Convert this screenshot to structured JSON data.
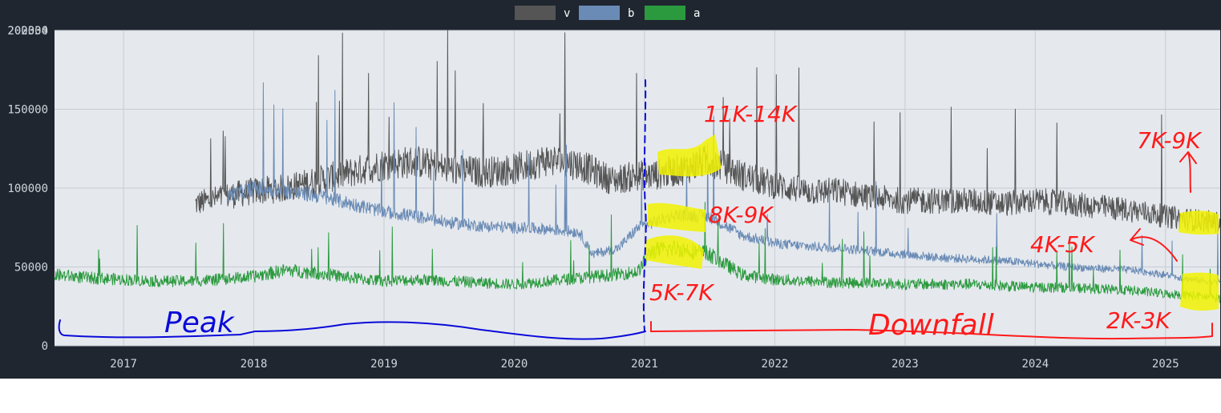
{
  "theme": {
    "frame_bg": "#1f2630",
    "plot_bg": "#e5e9ee",
    "grid": "#c7ccd3",
    "tick_text": "#d0d4da",
    "legend_text": "#ffffff",
    "annotation_red": "#ff1a1a",
    "annotation_blue": "#0a0ad8",
    "highlight": "#f2f200"
  },
  "chart_data": {
    "type": "line",
    "title": "",
    "xlabel": "",
    "ylabel": "",
    "x_range": [
      2016.47,
      2025.42
    ],
    "ylim": [
      0,
      200000
    ],
    "top_tick_label": "202334",
    "y_ticks": [
      {
        "value": 0,
        "label": "0"
      },
      {
        "value": 50000,
        "label": "50000"
      },
      {
        "value": 100000,
        "label": "100000"
      },
      {
        "value": 150000,
        "label": "150000"
      },
      {
        "value": 200000,
        "label": "200000"
      }
    ],
    "x_ticks": [
      {
        "value": 2017,
        "label": "2017"
      },
      {
        "value": 2018,
        "label": "2018"
      },
      {
        "value": 2019,
        "label": "2019"
      },
      {
        "value": 2020,
        "label": "2020"
      },
      {
        "value": 2021,
        "label": "2021"
      },
      {
        "value": 2022,
        "label": "2022"
      },
      {
        "value": 2023,
        "label": "2023"
      },
      {
        "value": 2024,
        "label": "2024"
      },
      {
        "value": 2025,
        "label": "2025"
      }
    ],
    "grid": true,
    "legend_position": "top-center",
    "series": [
      {
        "name": "v",
        "color": "#555555",
        "x": [
          2017.55,
          2017.8,
          2018.0,
          2018.25,
          2018.5,
          2018.75,
          2019.0,
          2019.25,
          2019.5,
          2019.75,
          2020.0,
          2020.25,
          2020.5,
          2020.75,
          2020.95,
          2021.05,
          2021.3,
          2021.5,
          2021.75,
          2022.0,
          2022.25,
          2022.5,
          2022.75,
          2023.0,
          2023.25,
          2023.5,
          2023.75,
          2024.0,
          2024.25,
          2024.5,
          2024.75,
          2025.0,
          2025.2,
          2025.42
        ],
        "values": [
          90000,
          95000,
          98000,
          100000,
          105000,
          110000,
          115000,
          117000,
          112000,
          110000,
          112000,
          118000,
          115000,
          105000,
          108000,
          108000,
          112000,
          118000,
          108000,
          102000,
          98000,
          98000,
          94000,
          92000,
          92000,
          92000,
          90000,
          92000,
          90000,
          88000,
          86000,
          82000,
          80000,
          78000
        ]
      },
      {
        "name": "b",
        "color": "#6a8bb5",
        "x": [
          2017.8,
          2018.0,
          2018.25,
          2018.5,
          2018.75,
          2019.0,
          2019.25,
          2019.5,
          2019.75,
          2020.0,
          2020.25,
          2020.5,
          2020.6,
          2020.8,
          2020.95,
          2021.05,
          2021.25,
          2021.5,
          2021.75,
          2022.0,
          2022.25,
          2022.5,
          2022.75,
          2023.0,
          2023.25,
          2023.5,
          2023.75,
          2024.0,
          2024.25,
          2024.5,
          2024.75,
          2025.0,
          2025.2,
          2025.42
        ],
        "values": [
          95000,
          100000,
          98000,
          95000,
          90000,
          85000,
          82000,
          78000,
          76000,
          75000,
          74000,
          72000,
          58000,
          62000,
          75000,
          78000,
          83000,
          82000,
          70000,
          65000,
          63000,
          62000,
          60000,
          58000,
          56000,
          55000,
          54000,
          52000,
          50000,
          49000,
          48000,
          45000,
          42000,
          40000
        ]
      },
      {
        "name": "a",
        "color": "#2b9a3e",
        "x": [
          2016.47,
          2016.75,
          2017.0,
          2017.25,
          2017.5,
          2017.75,
          2018.0,
          2018.25,
          2018.5,
          2018.75,
          2019.0,
          2019.25,
          2019.5,
          2019.75,
          2020.0,
          2020.25,
          2020.5,
          2020.75,
          2020.95,
          2021.05,
          2021.25,
          2021.5,
          2021.75,
          2022.0,
          2022.25,
          2022.5,
          2022.75,
          2023.0,
          2023.25,
          2023.5,
          2023.75,
          2024.0,
          2024.25,
          2024.5,
          2024.75,
          2025.0,
          2025.2,
          2025.42
        ],
        "values": [
          45000,
          43000,
          42000,
          41000,
          41000,
          42000,
          44000,
          48000,
          46000,
          43000,
          41000,
          42000,
          41000,
          40000,
          39000,
          41000,
          43000,
          45000,
          47000,
          60000,
          62000,
          58000,
          45000,
          42000,
          41000,
          40000,
          40000,
          39000,
          39000,
          39000,
          38000,
          37000,
          37000,
          36000,
          35000,
          33000,
          32000,
          30000
        ]
      }
    ]
  },
  "annotations": {
    "peak_label": "Peak",
    "downfall_label": "Downfall",
    "v_2021_label": "11K-14K",
    "b_2021_label": "8K-9K",
    "a_2021_label": "5K-7K",
    "v_2025_label": "7K-9K",
    "b_2025_label": "4K-5K",
    "a_2025_label": "2K-3K"
  }
}
